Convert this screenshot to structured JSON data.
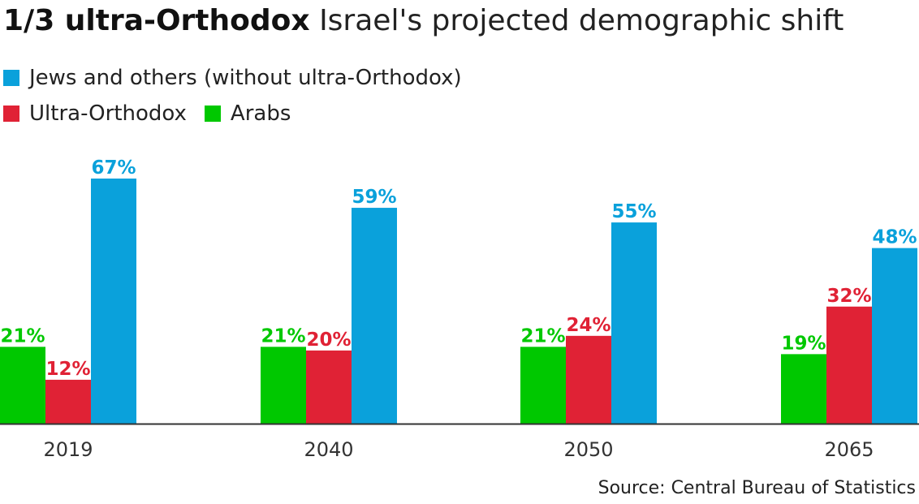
{
  "title": {
    "bold": "1/3 ultra-Orthodox",
    "rest": "Israel's projected demographic shift"
  },
  "source": "Source: Central Bureau of Statistics",
  "colors": {
    "arabs": "#00c800",
    "ultra_orthodox": "#e02235",
    "jews_others": "#0aa1db",
    "axis": "#333333"
  },
  "chart_data": {
    "type": "bar",
    "categories": [
      "2019",
      "2040",
      "2050",
      "2065"
    ],
    "series": [
      {
        "name": "Arabs",
        "color": "#00c800",
        "values": [
          21,
          21,
          21,
          19
        ],
        "labels": [
          "21%",
          "21%",
          "21%",
          "19%"
        ]
      },
      {
        "name": "Ultra-Orthodox",
        "color": "#e02235",
        "values": [
          12,
          20,
          24,
          32
        ],
        "labels": [
          "12%",
          "20%",
          "24%",
          "32%"
        ]
      },
      {
        "name": "Jews and others (without ultra-Orthodox)",
        "color": "#0aa1db",
        "values": [
          67,
          59,
          55,
          48
        ],
        "labels": [
          "67%",
          "59%",
          "55%",
          "48%"
        ]
      }
    ],
    "legend": [
      {
        "row": 1,
        "name": "Jews and others (without ultra-Orthodox)",
        "color": "#0aa1db"
      },
      {
        "row": 2,
        "name": "Ultra-Orthodox",
        "color": "#e02235"
      },
      {
        "row": 2,
        "name": "Arabs",
        "color": "#00c800"
      }
    ],
    "legend_position": "top-left",
    "ylim": [
      0,
      67
    ],
    "grid": false
  }
}
